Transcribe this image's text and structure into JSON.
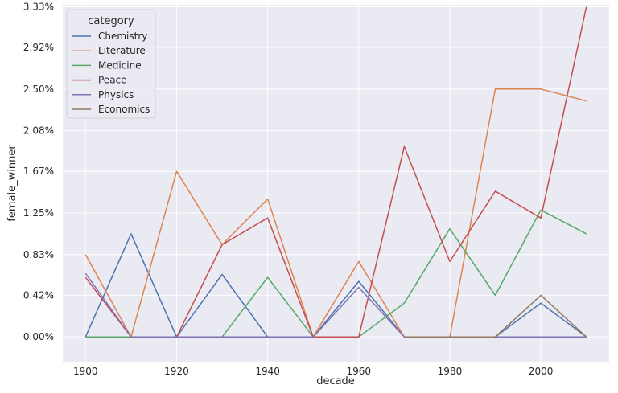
{
  "chart_data": {
    "type": "line",
    "xlabel": "decade",
    "ylabel": "female_winner",
    "x": [
      1900,
      1910,
      1920,
      1930,
      1940,
      1950,
      1960,
      1970,
      1980,
      1990,
      2000,
      2010
    ],
    "xlim": [
      1895,
      2015
    ],
    "ylim": [
      -0.0025,
      0.0335
    ],
    "xticks": [
      1900,
      1920,
      1940,
      1960,
      1980,
      2000
    ],
    "xtick_labels": [
      "1900",
      "1920",
      "1940",
      "1960",
      "1980",
      "2000"
    ],
    "yticks": [
      0,
      0.0042,
      0.0083,
      0.0125,
      0.0167,
      0.0208,
      0.025,
      0.0292,
      0.0333
    ],
    "ytick_labels": [
      "0.00%",
      "0.42%",
      "0.83%",
      "1.25%",
      "1.67%",
      "2.08%",
      "2.50%",
      "2.92%",
      "3.33%"
    ],
    "grid": true,
    "legend": {
      "title": "category",
      "position": "top-left"
    },
    "series": [
      {
        "name": "Chemistry",
        "color": "#4c72b0",
        "values": [
          0,
          0.0104,
          0,
          0.0063,
          0,
          0,
          0.0056,
          0,
          0,
          0,
          0.0034,
          0
        ]
      },
      {
        "name": "Literature",
        "color": "#dd8452",
        "values": [
          0.0083,
          0,
          0.0167,
          0.0093,
          0.0139,
          0,
          0.0076,
          0,
          0,
          0.025,
          0.025,
          0.0238
        ]
      },
      {
        "name": "Medicine",
        "color": "#55a868",
        "values": [
          0,
          0,
          0,
          0,
          0.006,
          0,
          0,
          0.0034,
          0.0109,
          0.0042,
          0.0128,
          0.0104
        ]
      },
      {
        "name": "Peace",
        "color": "#c44e52",
        "values": [
          0.006,
          0,
          0,
          0.0093,
          0.012,
          0,
          0,
          0.0192,
          0.0076,
          0.0147,
          0.012,
          0.0333
        ]
      },
      {
        "name": "Physics",
        "color": "#8172b3",
        "values": [
          0.0064,
          0,
          0,
          0,
          0,
          0,
          0.005,
          0,
          0,
          0,
          0,
          0
        ]
      },
      {
        "name": "Economics",
        "color": "#937860",
        "values": [
          null,
          null,
          null,
          null,
          null,
          null,
          null,
          0,
          0,
          0,
          0.0042,
          0
        ]
      }
    ]
  }
}
